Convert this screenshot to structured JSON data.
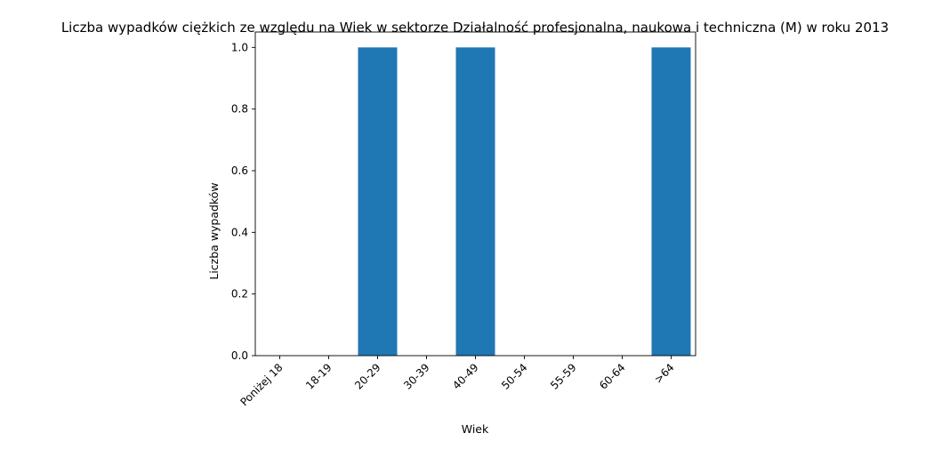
{
  "chart_data": {
    "type": "bar",
    "title": "Liczba wypadków ciężkich ze względu na Wiek w sektorze Działalność profesjonalna, naukowa i techniczna  (M)  w roku 2013",
    "xlabel": "Wiek",
    "ylabel": "Liczba wypadków",
    "categories": [
      "Poniżej 18",
      "18-19",
      "20-29",
      "30-39",
      "40-49",
      "50-54",
      "55-59",
      "60-64",
      ">64"
    ],
    "values": [
      0,
      0,
      1,
      0,
      1,
      0,
      0,
      0,
      1
    ],
    "ylim": [
      0,
      1.05
    ],
    "yticks": [
      "0.0",
      "0.2",
      "0.4",
      "0.6",
      "0.8",
      "1.0"
    ],
    "grid": false,
    "bar_color": "#1f77b4"
  }
}
